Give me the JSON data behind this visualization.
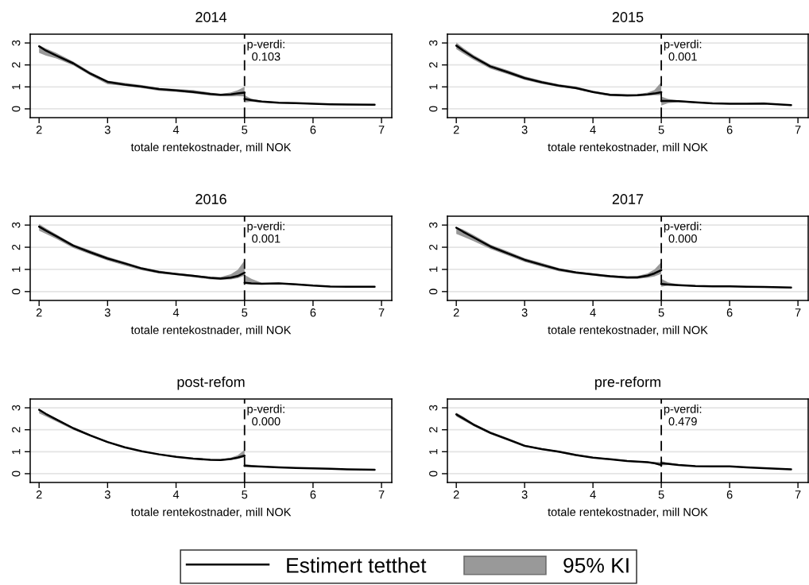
{
  "chart_data": [
    {
      "type": "line",
      "title": "2014",
      "xlabel": "totale rentekostnader, mill NOK",
      "xlim": [
        1.87,
        7.15
      ],
      "xticks": [
        2,
        3,
        4,
        5,
        6,
        7
      ],
      "ylim": [
        -0.4,
        3.4
      ],
      "yticks": [
        0,
        1,
        2,
        3
      ],
      "grid": "y",
      "legend": "bottom",
      "series": [
        {
          "name": "Estimert tetthet",
          "color": "#000000",
          "x": [
            2,
            2.1,
            2.25,
            2.5,
            2.75,
            3,
            3.25,
            3.5,
            3.75,
            4,
            4.25,
            4.5,
            4.65,
            4.8,
            4.9,
            5
          ],
          "values": [
            2.85,
            2.65,
            2.43,
            2.07,
            1.6,
            1.23,
            1.1,
            1.01,
            0.9,
            0.84,
            0.77,
            0.68,
            0.64,
            0.66,
            0.7,
            0.74
          ],
          "lower": [
            2.55,
            2.42,
            2.3,
            1.98,
            1.52,
            1.12,
            1.05,
            0.95,
            0.82,
            0.78,
            0.7,
            0.6,
            0.58,
            0.57,
            0.58,
            0.57
          ],
          "upper": [
            2.9,
            2.75,
            2.55,
            2.15,
            1.68,
            1.28,
            1.18,
            1.08,
            0.95,
            0.9,
            0.86,
            0.74,
            0.68,
            0.75,
            0.85,
            1.0
          ]
        },
        {
          "color": "#000000",
          "x": [
            5,
            5.1,
            5.25,
            5.5,
            5.75,
            6,
            6.25,
            6.5,
            6.9
          ],
          "values": [
            0.45,
            0.4,
            0.33,
            0.28,
            0.26,
            0.23,
            0.21,
            0.2,
            0.19
          ],
          "lower": [
            0.3,
            0.32,
            0.29,
            0.25,
            0.23,
            0.21,
            0.19,
            0.18,
            0.17
          ],
          "upper": [
            0.62,
            0.46,
            0.37,
            0.31,
            0.28,
            0.25,
            0.23,
            0.22,
            0.21
          ]
        }
      ],
      "ref_lines": [
        {
          "axis": "x",
          "value": 5,
          "color": "#000000",
          "line_style": "dashed"
        }
      ],
      "annotations": [
        "p-verdi:\n0.103",
        "95% KI"
      ]
    },
    {
      "type": "line",
      "title": "2015",
      "xlabel": "totale rentekostnader, mill NOK",
      "xlim": [
        1.87,
        7.15
      ],
      "xticks": [
        2,
        3,
        4,
        5,
        6,
        7
      ],
      "ylim": [
        -0.4,
        3.4
      ],
      "yticks": [
        0,
        1,
        2,
        3
      ],
      "grid": "y",
      "series": [
        {
          "color": "#000000",
          "x": [
            2,
            2.1,
            2.25,
            2.5,
            2.75,
            3,
            3.25,
            3.5,
            3.75,
            4,
            4.25,
            4.5,
            4.65,
            4.8,
            4.9,
            5
          ],
          "values": [
            2.88,
            2.66,
            2.36,
            1.93,
            1.67,
            1.4,
            1.21,
            1.06,
            0.95,
            0.77,
            0.64,
            0.61,
            0.62,
            0.66,
            0.7,
            0.76
          ],
          "lower": [
            2.72,
            2.52,
            2.24,
            1.83,
            1.58,
            1.32,
            1.14,
            1.0,
            0.89,
            0.72,
            0.58,
            0.56,
            0.57,
            0.6,
            0.62,
            0.62
          ],
          "upper": [
            3.02,
            2.78,
            2.46,
            2.02,
            1.76,
            1.48,
            1.28,
            1.12,
            1.02,
            0.82,
            0.69,
            0.66,
            0.67,
            0.74,
            0.86,
            1.22
          ]
        },
        {
          "color": "#000000",
          "x": [
            5,
            5.1,
            5.25,
            5.5,
            5.75,
            6,
            6.25,
            6.5,
            6.9
          ],
          "values": [
            0.36,
            0.36,
            0.35,
            0.3,
            0.25,
            0.23,
            0.23,
            0.24,
            0.17
          ],
          "lower": [
            0.15,
            0.26,
            0.31,
            0.27,
            0.23,
            0.21,
            0.21,
            0.22,
            0.15
          ],
          "upper": [
            0.56,
            0.45,
            0.39,
            0.33,
            0.27,
            0.25,
            0.25,
            0.26,
            0.19
          ]
        }
      ],
      "ref_lines": [
        {
          "axis": "x",
          "value": 5,
          "color": "#000000",
          "line_style": "dashed"
        }
      ],
      "annotations": [
        "p-verdi:\n0.001"
      ]
    },
    {
      "type": "line",
      "title": "2016",
      "xlabel": "totale rentekostnader, mill NOK",
      "xlim": [
        1.87,
        7.15
      ],
      "xticks": [
        2,
        3,
        4,
        5,
        6,
        7
      ],
      "ylim": [
        -0.4,
        3.4
      ],
      "yticks": [
        0,
        1,
        2,
        3
      ],
      "grid": "y",
      "series": [
        {
          "color": "#000000",
          "x": [
            2,
            2.1,
            2.25,
            2.5,
            2.75,
            3,
            3.25,
            3.5,
            3.75,
            4,
            4.25,
            4.5,
            4.65,
            4.8,
            4.9,
            5
          ],
          "values": [
            2.93,
            2.75,
            2.5,
            2.07,
            1.77,
            1.49,
            1.27,
            1.04,
            0.88,
            0.79,
            0.71,
            0.62,
            0.59,
            0.63,
            0.7,
            0.85
          ],
          "lower": [
            2.75,
            2.6,
            2.38,
            1.97,
            1.68,
            1.4,
            1.18,
            0.96,
            0.82,
            0.74,
            0.65,
            0.55,
            0.53,
            0.55,
            0.6,
            0.72
          ],
          "upper": [
            3.05,
            2.85,
            2.58,
            2.14,
            1.86,
            1.57,
            1.34,
            1.1,
            0.94,
            0.84,
            0.76,
            0.67,
            0.66,
            0.78,
            0.98,
            1.4
          ]
        },
        {
          "color": "#000000",
          "x": [
            5,
            5.1,
            5.25,
            5.5,
            5.75,
            6,
            6.25,
            6.5,
            6.9
          ],
          "values": [
            0.4,
            0.37,
            0.35,
            0.37,
            0.33,
            0.27,
            0.23,
            0.22,
            0.22
          ],
          "lower": [
            0.35,
            0.33,
            0.32,
            0.34,
            0.3,
            0.25,
            0.21,
            0.2,
            0.2
          ],
          "upper": [
            0.76,
            0.58,
            0.4,
            0.4,
            0.36,
            0.29,
            0.25,
            0.24,
            0.24
          ]
        }
      ],
      "ref_lines": [
        {
          "axis": "x",
          "value": 5,
          "color": "#000000",
          "line_style": "dashed"
        }
      ],
      "annotations": [
        "p-verdi:\n0.001"
      ]
    },
    {
      "type": "line",
      "title": "2017",
      "xlabel": "totale rentekostnader, mill NOK",
      "xlim": [
        1.87,
        7.15
      ],
      "xticks": [
        2,
        3,
        4,
        5,
        6,
        7
      ],
      "ylim": [
        -0.4,
        3.4
      ],
      "yticks": [
        0,
        1,
        2,
        3
      ],
      "grid": "y",
      "series": [
        {
          "color": "#000000",
          "x": [
            2,
            2.1,
            2.25,
            2.5,
            2.75,
            3,
            3.25,
            3.5,
            3.75,
            4,
            4.25,
            4.5,
            4.65,
            4.8,
            4.9,
            5
          ],
          "values": [
            2.88,
            2.7,
            2.45,
            2.03,
            1.73,
            1.43,
            1.21,
            1.0,
            0.86,
            0.77,
            0.69,
            0.64,
            0.64,
            0.72,
            0.82,
            0.97
          ],
          "lower": [
            2.6,
            2.48,
            2.28,
            1.92,
            1.63,
            1.34,
            1.12,
            0.92,
            0.8,
            0.72,
            0.63,
            0.58,
            0.58,
            0.62,
            0.68,
            0.8
          ],
          "upper": [
            2.92,
            2.8,
            2.56,
            2.12,
            1.82,
            1.51,
            1.29,
            1.06,
            0.91,
            0.83,
            0.74,
            0.68,
            0.7,
            0.82,
            1.0,
            1.33
          ]
        },
        {
          "color": "#000000",
          "x": [
            5,
            5.1,
            5.25,
            5.5,
            5.75,
            6,
            6.25,
            6.5,
            6.9
          ],
          "values": [
            0.34,
            0.32,
            0.29,
            0.25,
            0.24,
            0.24,
            0.22,
            0.21,
            0.18
          ],
          "lower": [
            0.22,
            0.27,
            0.26,
            0.23,
            0.22,
            0.22,
            0.2,
            0.19,
            0.16
          ],
          "upper": [
            0.58,
            0.42,
            0.33,
            0.28,
            0.26,
            0.26,
            0.24,
            0.23,
            0.2
          ]
        }
      ],
      "ref_lines": [
        {
          "axis": "x",
          "value": 5,
          "color": "#000000",
          "line_style": "dashed"
        }
      ],
      "annotations": [
        "p-verdi:\n0.000"
      ]
    },
    {
      "type": "line",
      "title": "post-refom",
      "xlabel": "totale rentekostnader, mill NOK",
      "xlim": [
        1.87,
        7.15
      ],
      "xticks": [
        2,
        3,
        4,
        5,
        6,
        7
      ],
      "ylim": [
        -0.4,
        3.4
      ],
      "yticks": [
        0,
        1,
        2,
        3
      ],
      "grid": "y",
      "series": [
        {
          "color": "#000000",
          "x": [
            2,
            2.1,
            2.25,
            2.5,
            2.75,
            3,
            3.25,
            3.5,
            3.75,
            4,
            4.25,
            4.5,
            4.65,
            4.8,
            4.9,
            5
          ],
          "values": [
            2.91,
            2.72,
            2.47,
            2.07,
            1.74,
            1.44,
            1.2,
            1.02,
            0.88,
            0.77,
            0.69,
            0.63,
            0.62,
            0.67,
            0.73,
            0.82
          ],
          "lower": [
            2.75,
            2.6,
            2.38,
            2.0,
            1.69,
            1.4,
            1.17,
            0.99,
            0.85,
            0.74,
            0.66,
            0.6,
            0.59,
            0.63,
            0.68,
            0.76
          ],
          "upper": [
            2.93,
            2.76,
            2.51,
            2.11,
            1.78,
            1.47,
            1.23,
            1.05,
            0.91,
            0.8,
            0.72,
            0.66,
            0.65,
            0.73,
            0.84,
            1.08
          ]
        },
        {
          "color": "#000000",
          "x": [
            5,
            5.1,
            5.25,
            5.5,
            5.75,
            6,
            6.25,
            6.5,
            6.9
          ],
          "values": [
            0.36,
            0.34,
            0.32,
            0.29,
            0.26,
            0.24,
            0.22,
            0.2,
            0.18
          ],
          "lower": [
            0.34,
            0.33,
            0.31,
            0.28,
            0.25,
            0.23,
            0.21,
            0.19,
            0.17
          ],
          "upper": [
            0.45,
            0.4,
            0.34,
            0.3,
            0.27,
            0.25,
            0.23,
            0.21,
            0.19
          ]
        }
      ],
      "ref_lines": [
        {
          "axis": "x",
          "value": 5,
          "color": "#000000",
          "line_style": "dashed"
        }
      ],
      "annotations": [
        "p-verdi:\n0.000"
      ]
    },
    {
      "type": "line",
      "title": "pre-reform",
      "xlabel": "totale rentekostnader, mill NOK",
      "xlim": [
        1.87,
        7.15
      ],
      "xticks": [
        2,
        3,
        4,
        5,
        6,
        7
      ],
      "ylim": [
        -0.4,
        3.4
      ],
      "yticks": [
        0,
        1,
        2,
        3
      ],
      "grid": "y",
      "series": [
        {
          "color": "#000000",
          "x": [
            2,
            2.1,
            2.25,
            2.5,
            2.75,
            3,
            3.25,
            3.5,
            3.75,
            4,
            4.25,
            4.5,
            4.65,
            4.8,
            4.9,
            5
          ],
          "values": [
            2.7,
            2.52,
            2.24,
            1.86,
            1.57,
            1.27,
            1.12,
            1.0,
            0.85,
            0.73,
            0.66,
            0.58,
            0.55,
            0.52,
            0.48,
            0.4
          ],
          "lower": [
            2.6,
            2.43,
            2.17,
            1.8,
            1.51,
            1.22,
            1.08,
            0.96,
            0.81,
            0.7,
            0.63,
            0.55,
            0.52,
            0.49,
            0.44,
            0.32
          ],
          "upper": [
            2.78,
            2.6,
            2.3,
            1.92,
            1.63,
            1.32,
            1.16,
            1.04,
            0.89,
            0.76,
            0.69,
            0.61,
            0.58,
            0.55,
            0.52,
            0.54
          ]
        },
        {
          "color": "#000000",
          "x": [
            5,
            5.1,
            5.25,
            5.5,
            5.75,
            6,
            6.25,
            6.5,
            6.9
          ],
          "values": [
            0.48,
            0.45,
            0.4,
            0.34,
            0.33,
            0.33,
            0.29,
            0.25,
            0.2
          ],
          "lower": [
            0.38,
            0.4,
            0.37,
            0.32,
            0.31,
            0.31,
            0.27,
            0.23,
            0.18
          ],
          "upper": [
            0.57,
            0.5,
            0.43,
            0.36,
            0.35,
            0.35,
            0.31,
            0.27,
            0.22
          ]
        }
      ],
      "ref_lines": [
        {
          "axis": "x",
          "value": 5,
          "color": "#000000",
          "line_style": "dashed"
        }
      ],
      "annotations": [
        "p-verdi:\n0.479"
      ]
    }
  ]
}
